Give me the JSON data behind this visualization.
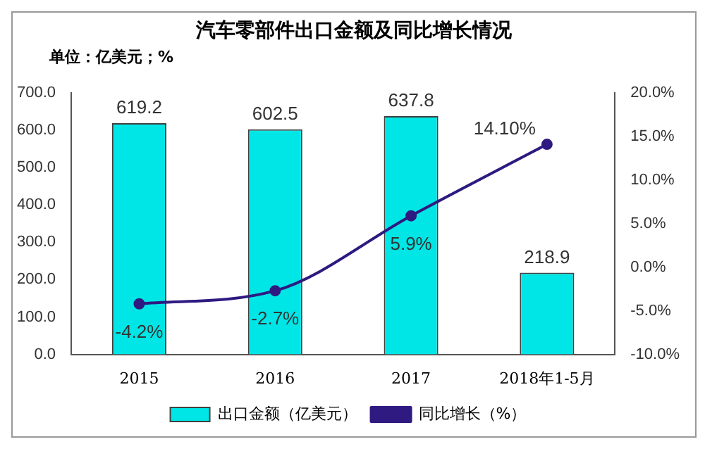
{
  "chart_data": {
    "type": "bar",
    "title": "汽车零部件出口金额及同比增长情况",
    "subtitle": "单位：亿美元；%",
    "categories": [
      "2015",
      "2016",
      "2017",
      "2018年1-5月"
    ],
    "series": [
      {
        "name": "出口金额（亿美元）",
        "type": "bar",
        "color": "#00e6e6",
        "values": [
          619.2,
          602.5,
          637.8,
          218.9
        ],
        "value_labels": [
          "619.2",
          "602.5",
          "637.8",
          "218.9"
        ]
      },
      {
        "name": "同比增长（%）",
        "type": "line",
        "axis": "y2",
        "color": "#2e1a80",
        "values": [
          -4.2,
          -2.7,
          5.9,
          14.1
        ],
        "value_labels": [
          "-4.2%",
          "-2.7%",
          "5.9%",
          "14.10%"
        ]
      }
    ],
    "ylim": [
      0,
      700
    ],
    "yticks": [
      {
        "value": 0,
        "label": "0.0"
      },
      {
        "value": 100,
        "label": "100.0"
      },
      {
        "value": 200,
        "label": "200.0"
      },
      {
        "value": 300,
        "label": "300.0"
      },
      {
        "value": 400,
        "label": "400.0"
      },
      {
        "value": 500,
        "label": "500.0"
      },
      {
        "value": 600,
        "label": "600.0"
      },
      {
        "value": 700,
        "label": "700.0"
      }
    ],
    "y2lim": [
      -10,
      20
    ],
    "y2ticks": [
      {
        "value": -10,
        "label": "-10.0%"
      },
      {
        "value": -5,
        "label": "-5.0%"
      },
      {
        "value": 0,
        "label": "0.0%"
      },
      {
        "value": 5,
        "label": "5.0%"
      },
      {
        "value": 10,
        "label": "10.0%"
      },
      {
        "value": 15,
        "label": "15.0%"
      },
      {
        "value": 20,
        "label": "20.0%"
      }
    ],
    "grid": false,
    "legend": "bottom",
    "marker": "circle",
    "line_style": "solid"
  }
}
